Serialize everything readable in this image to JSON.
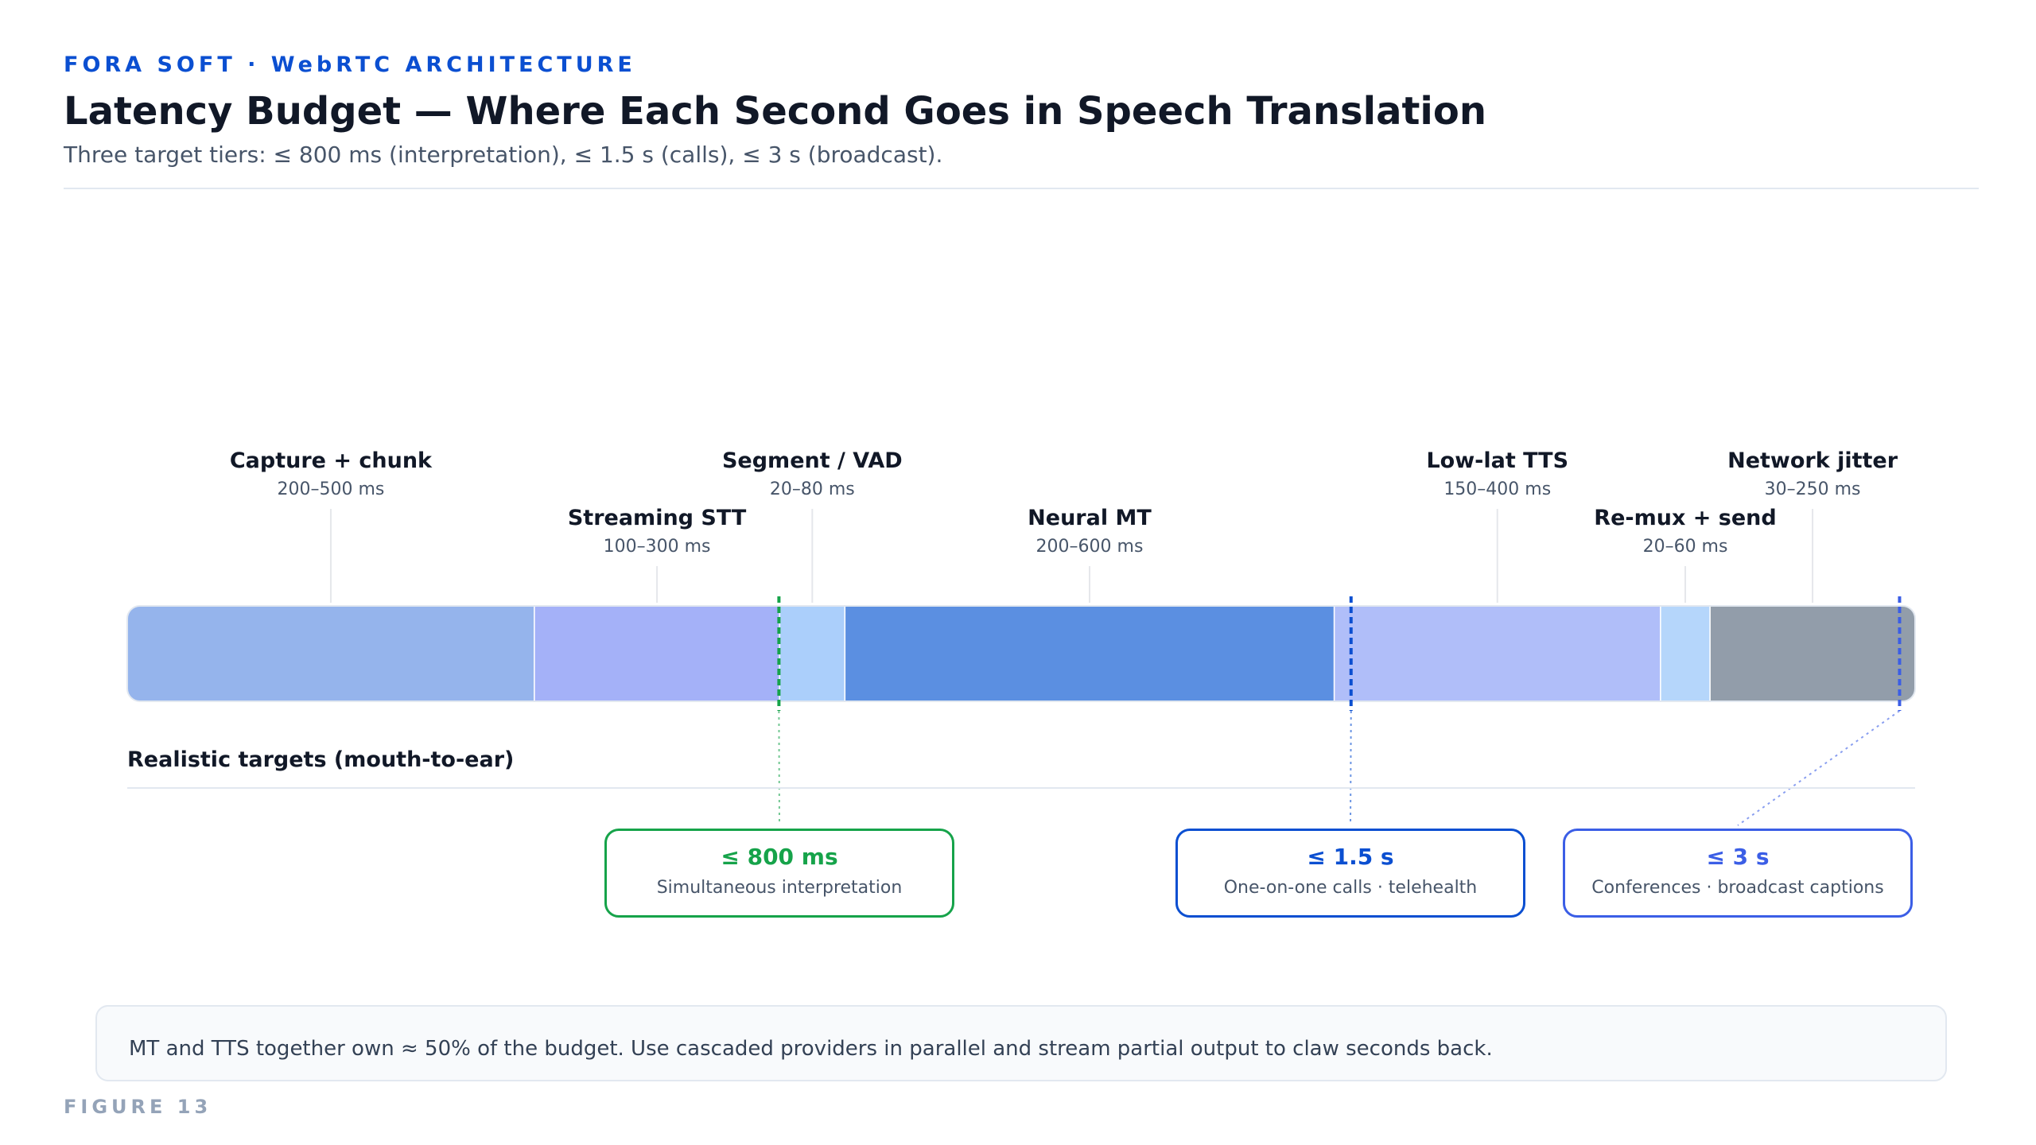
{
  "header": {
    "kicker": "FORA SOFT · WebRTC ARCHITECTURE",
    "title": "Latency Budget — Where Each Second Goes in Speech Translation",
    "subtitle": "Three target tiers: ≤ 800 ms (interpretation), ≤ 1.5 s (calls), ≤ 3 s (broadcast)."
  },
  "segments": [
    {
      "name": "Capture + chunk",
      "range": "200–500 ms",
      "fraction": 0.2277,
      "color": "#95b4ec",
      "label_row": "top"
    },
    {
      "name": "Streaming STT",
      "range": "100–300 ms",
      "fraction": 0.1372,
      "color": "#a4b1f8",
      "label_row": "bottom"
    },
    {
      "name": "Segment / VAD",
      "range": "20–80 ms",
      "fraction": 0.0365,
      "color": "#abcffb",
      "label_row": "top"
    },
    {
      "name": "Neural MT",
      "range": "200–600 ms",
      "fraction": 0.2737,
      "color": "#5b8fe1",
      "label_row": "bottom"
    },
    {
      "name": "Low-lat TTS",
      "range": "150–400 ms",
      "fraction": 0.1825,
      "color": "#b0bef9",
      "label_row": "top"
    },
    {
      "name": "Re-mux + send",
      "range": "20–60 ms",
      "fraction": 0.0277,
      "color": "#b5d6fb",
      "label_row": "bottom"
    },
    {
      "name": "Network jitter",
      "range": "30–250 ms",
      "fraction": 0.1147,
      "color": "#929daa",
      "label_row": "top"
    }
  ],
  "targets_heading": "Realistic targets (mouth-to-ear)",
  "targets": [
    {
      "value": "≤ 800 ms",
      "desc": "Simultaneous interpretation",
      "color": "#16a34a",
      "bar_fraction": 0.3645
    },
    {
      "value": "≤ 1.5 s",
      "desc": "One-on-one calls · telehealth",
      "color": "#0b4fd1",
      "bar_fraction": 0.6845
    },
    {
      "value": "≤ 3 s",
      "desc": "Conferences · broadcast captions",
      "color": "#3b5ee6",
      "bar_fraction": 0.9913
    }
  ],
  "note": "MT and TTS together own ≈ 50% of the budget. Use cascaded providers in parallel and stream partial output to claw seconds back.",
  "figure_label": "FIGURE 13"
}
